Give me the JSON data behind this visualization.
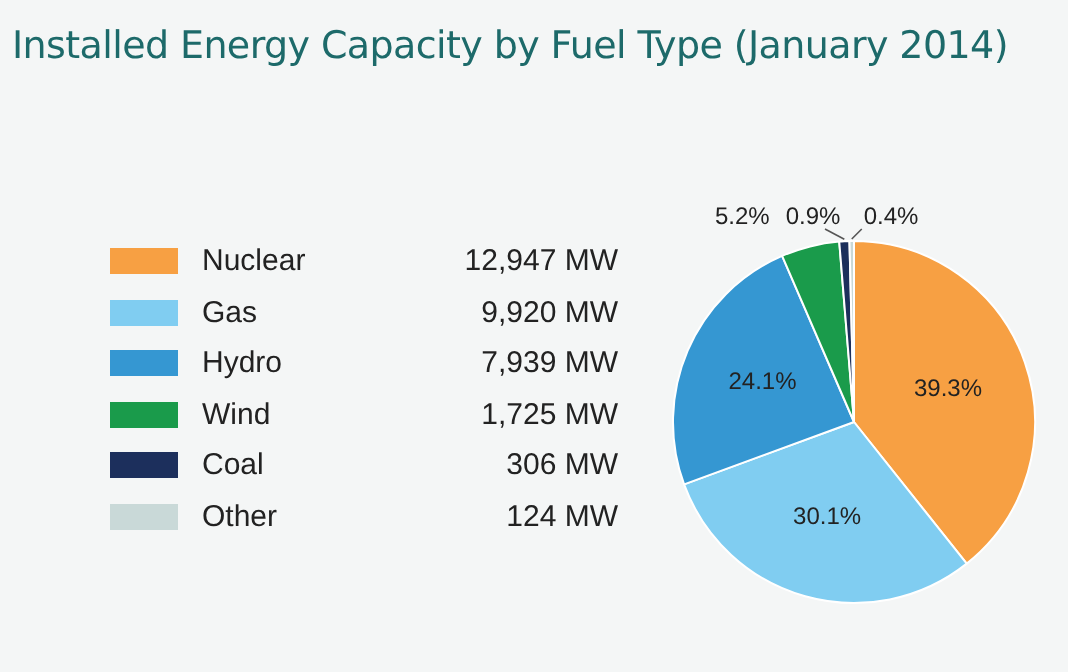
{
  "chart_data": {
    "type": "pie",
    "title": "Installed Energy Capacity by Fuel Type (January 2014)",
    "categories": [
      "Nuclear",
      "Gas",
      "Hydro",
      "Wind",
      "Coal",
      "Other"
    ],
    "values": [
      39.3,
      30.1,
      24.1,
      5.2,
      0.9,
      0.4
    ],
    "colors": [
      "#f7a043",
      "#80cdf1",
      "#3597d2",
      "#1a9b4b",
      "#1c2f5c",
      "#c9d9d8"
    ],
    "value_labels": [
      "39.3%",
      "30.1%",
      "24.1%",
      "5.2%",
      "0.9%",
      "0.4%"
    ],
    "annotations": [
      "12,947 MW",
      "9,920 MW",
      "7,939 MW",
      "1,725 MW",
      "306 MW",
      "124 MW"
    ],
    "legend": "left"
  }
}
